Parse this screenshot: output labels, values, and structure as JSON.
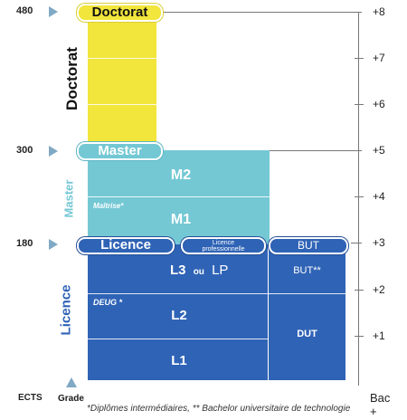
{
  "ects": {
    "axis_label": "ECTS",
    "values": [
      "480",
      "300",
      "180"
    ]
  },
  "grade_label": "Grade",
  "bac": {
    "axis_label": "Bac +",
    "levels": [
      "+8",
      "+7",
      "+6",
      "+5",
      "+4",
      "+3",
      "+2",
      "+1"
    ]
  },
  "doctorat": {
    "pill_label": "Doctorat",
    "side_label": "Doctorat"
  },
  "master": {
    "pill_label": "Master",
    "side_label": "Master",
    "m2": "M2",
    "maitrise": "Maîtrise*",
    "m1": "M1"
  },
  "licence": {
    "pill_label": "Licence",
    "side_label": "Licence",
    "licence_pro_line1": "Licence",
    "licence_pro_line2": "professionnelle",
    "but": "BUT",
    "l3": "L3",
    "ou": "ou",
    "lp": "LP",
    "but_stars": "BUT**",
    "deug": "DEUG *",
    "l2": "L2",
    "l1": "L1",
    "dut": "DUT"
  },
  "colors": {
    "doctorat": "#f2e53c",
    "master": "#74c8d4",
    "licence": "#2f63b6",
    "arrow": "#7fa9c4"
  },
  "footnote": "*Diplômes intermédiaires, ** Bachelor universitaire de technologie"
}
